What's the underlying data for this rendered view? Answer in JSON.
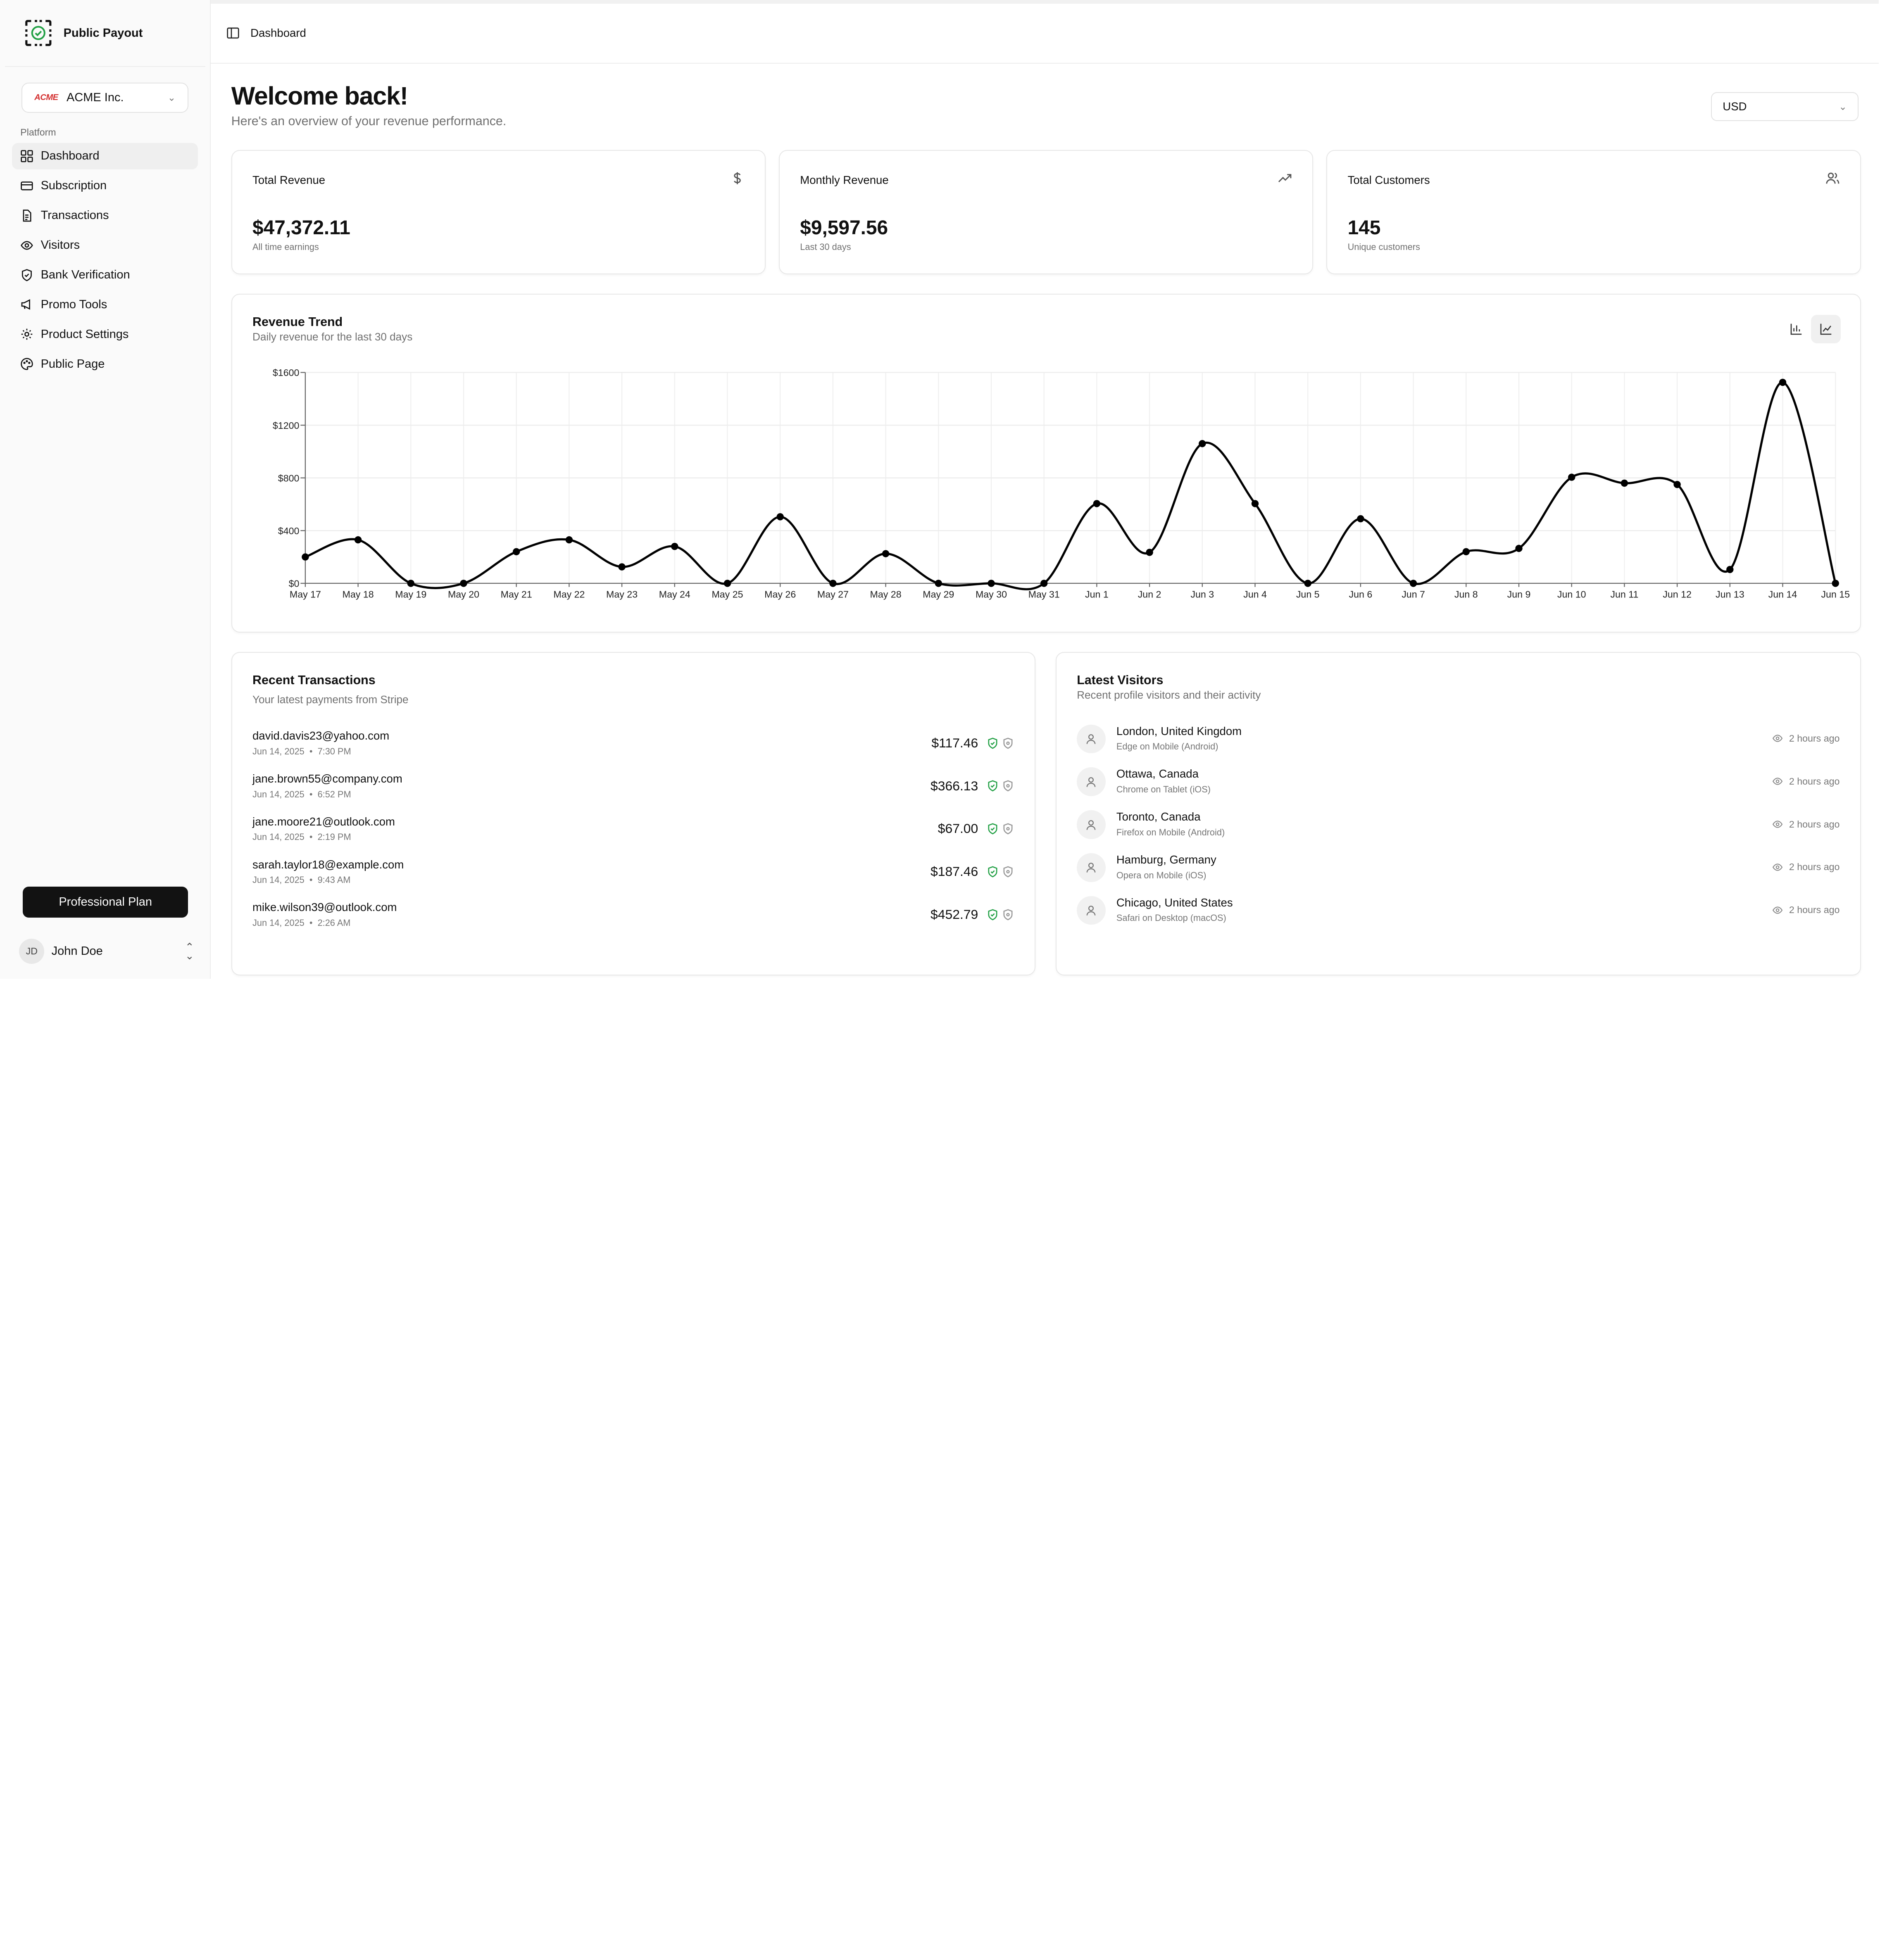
{
  "brand": {
    "name": "Public Payout"
  },
  "org": {
    "logo_text": "ACME",
    "name": "ACME Inc."
  },
  "sidebar": {
    "section_label": "Platform",
    "items": [
      {
        "label": "Dashboard",
        "icon": "grid-icon",
        "active": true
      },
      {
        "label": "Subscription",
        "icon": "credit-card-icon"
      },
      {
        "label": "Transactions",
        "icon": "file-text-icon"
      },
      {
        "label": "Visitors",
        "icon": "eye-icon"
      },
      {
        "label": "Bank Verification",
        "icon": "shield-icon"
      },
      {
        "label": "Promo Tools",
        "icon": "megaphone-icon"
      },
      {
        "label": "Product Settings",
        "icon": "gear-icon"
      },
      {
        "label": "Public Page",
        "icon": "palette-icon"
      }
    ],
    "plan_label": "Professional Plan",
    "user": {
      "initials": "JD",
      "name": "John Doe"
    }
  },
  "header": {
    "breadcrumb": "Dashboard"
  },
  "welcome": {
    "title": "Welcome back!",
    "subtitle": "Here's an overview of your revenue performance."
  },
  "currency": {
    "selected": "USD"
  },
  "stats": [
    {
      "title": "Total Revenue",
      "value": "$47,372.11",
      "sub": "All time earnings",
      "icon": "dollar-icon"
    },
    {
      "title": "Monthly Revenue",
      "value": "$9,597.56",
      "sub": "Last 30 days",
      "icon": "trending-up-icon"
    },
    {
      "title": "Total Customers",
      "value": "145",
      "sub": "Unique customers",
      "icon": "users-icon"
    }
  ],
  "chart_card": {
    "title": "Revenue Trend",
    "subtitle": "Daily revenue for the last 30 days"
  },
  "chart_data": {
    "type": "line",
    "title": "Revenue Trend",
    "x": [
      "May 17",
      "May 18",
      "May 19",
      "May 20",
      "May 21",
      "May 22",
      "May 23",
      "May 24",
      "May 25",
      "May 26",
      "May 27",
      "May 28",
      "May 29",
      "May 30",
      "May 31",
      "Jun 1",
      "Jun 2",
      "Jun 3",
      "Jun 4",
      "Jun 5",
      "Jun 6",
      "Jun 7",
      "Jun 8",
      "Jun 9",
      "Jun 10",
      "Jun 11",
      "Jun 12",
      "Jun 13",
      "Jun 14",
      "Jun 15"
    ],
    "series": [
      {
        "values": [
          200,
          330,
          0,
          0,
          240,
          330,
          125,
          280,
          0,
          505,
          0,
          225,
          0,
          0,
          0,
          605,
          235,
          1060,
          605,
          0,
          490,
          0,
          240,
          265,
          805,
          760,
          750,
          105,
          1525,
          0
        ]
      }
    ],
    "ylim": [
      0,
      1600
    ],
    "yticks": [
      "$0",
      "$400",
      "$800",
      "$1200",
      "$1600"
    ],
    "ytick_values": [
      0,
      400,
      800,
      1200,
      1600
    ],
    "grid": true,
    "color": "#000000"
  },
  "transactions": {
    "title": "Recent Transactions",
    "subtitle": "Your latest payments from Stripe",
    "rows": [
      {
        "email": "david.davis23@yahoo.com",
        "date": "Jun 14, 2025",
        "time": "7:30 PM",
        "amount": "$117.46"
      },
      {
        "email": "jane.brown55@company.com",
        "date": "Jun 14, 2025",
        "time": "6:52 PM",
        "amount": "$366.13"
      },
      {
        "email": "jane.moore21@outlook.com",
        "date": "Jun 14, 2025",
        "time": "2:19 PM",
        "amount": "$67.00"
      },
      {
        "email": "sarah.taylor18@example.com",
        "date": "Jun 14, 2025",
        "time": "9:43 AM",
        "amount": "$187.46"
      },
      {
        "email": "mike.wilson39@outlook.com",
        "date": "Jun 14, 2025",
        "time": "2:26 AM",
        "amount": "$452.79"
      }
    ]
  },
  "visitors": {
    "title": "Latest Visitors",
    "subtitle": "Recent profile visitors and their activity",
    "rows": [
      {
        "location": "London, United Kingdom",
        "device": "Edge on Mobile (Android)",
        "time": "2 hours ago"
      },
      {
        "location": "Ottawa, Canada",
        "device": "Chrome on Tablet (iOS)",
        "time": "2 hours ago"
      },
      {
        "location": "Toronto, Canada",
        "device": "Firefox on Mobile (Android)",
        "time": "2 hours ago"
      },
      {
        "location": "Hamburg, Germany",
        "device": "Opera on Mobile (iOS)",
        "time": "2 hours ago"
      },
      {
        "location": "Chicago, United States",
        "device": "Safari on Desktop (macOS)",
        "time": "2 hours ago"
      }
    ]
  },
  "colors": {
    "accent": "#111111",
    "verified": "#22a045",
    "muted": "#707070",
    "acme": "#d32f2f"
  }
}
